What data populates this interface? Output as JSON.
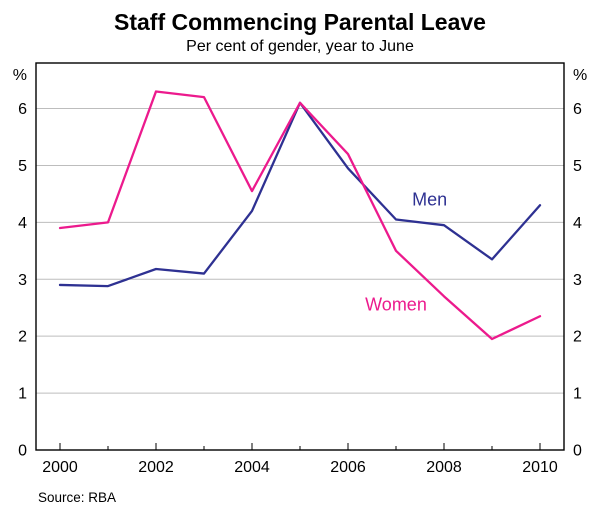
{
  "header": {
    "title": "Staff Commencing Parental Leave",
    "subtitle": "Per cent of gender, year to June"
  },
  "footer": {
    "source": "Source: RBA"
  },
  "chart_data": {
    "type": "line",
    "title": "Staff Commencing Parental Leave",
    "subtitle": "Per cent of gender, year to June",
    "x": [
      2000,
      2001,
      2002,
      2003,
      2004,
      2005,
      2006,
      2007,
      2008,
      2009,
      2010
    ],
    "series": [
      {
        "name": "Men",
        "color": "#2e3192",
        "values": [
          2.9,
          2.88,
          3.18,
          3.1,
          4.2,
          6.1,
          4.95,
          4.05,
          3.95,
          3.35,
          4.3
        ],
        "label_pos": {
          "x": 2007.7,
          "y": 4.3
        }
      },
      {
        "name": "Women",
        "color": "#ec1a8d",
        "values": [
          3.9,
          4.0,
          6.3,
          6.2,
          4.55,
          6.1,
          5.2,
          3.5,
          2.7,
          1.95,
          2.35
        ],
        "label_pos": {
          "x": 2007.0,
          "y": 2.45
        }
      }
    ],
    "ylim": [
      0,
      6.8
    ],
    "yticks": [
      0,
      1,
      2,
      3,
      4,
      5,
      6
    ],
    "xticks_labeled": [
      2000,
      2002,
      2004,
      2006,
      2008,
      2010
    ],
    "y_unit": "%",
    "grid": true,
    "legend_position": "inline-labels",
    "colors": {
      "grid": "#bdbdbd",
      "axis": "#000000"
    }
  }
}
